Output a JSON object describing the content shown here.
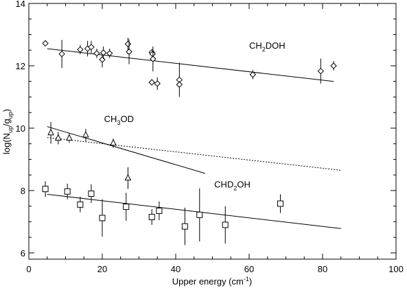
{
  "chart_data": {
    "type": "scatter",
    "title": "",
    "xlabel": "Upper energy (cm",
    "xlabel_sup": "-1",
    "xlabel_end": ")",
    "ylabel": "log(N",
    "ylabel_sub1": "up",
    "ylabel_mid": "/g",
    "ylabel_sub2": "up",
    "ylabel_end": ")",
    "xlim": [
      0,
      100
    ],
    "ylim": [
      5.8,
      14
    ],
    "xticks": [
      0,
      20,
      40,
      60,
      80,
      100
    ],
    "yticks": [
      6,
      8,
      10,
      12,
      14
    ],
    "grid": false,
    "series": [
      {
        "name": "CH2DOH",
        "label_parts": [
          "CH",
          "2",
          "DOH"
        ],
        "marker": "diamond",
        "points": [
          {
            "x": 4.5,
            "y": 12.72,
            "yerr": 0.1
          },
          {
            "x": 9.0,
            "y": 12.38,
            "yerr": 0.45
          },
          {
            "x": 14.0,
            "y": 12.52,
            "yerr": 0.15
          },
          {
            "x": 16.0,
            "y": 12.55,
            "yerr": 0.25
          },
          {
            "x": 17.0,
            "y": 12.6,
            "yerr": 0.2
          },
          {
            "x": 18.5,
            "y": 12.4,
            "yerr": 0.15
          },
          {
            "x": 20.0,
            "y": 12.2,
            "yerr": 0.25
          },
          {
            "x": 20.3,
            "y": 12.42,
            "yerr": 0.2
          },
          {
            "x": 22.0,
            "y": 12.4,
            "yerr": 0.15
          },
          {
            "x": 27.0,
            "y": 12.7,
            "yerr": 0.2
          },
          {
            "x": 27.3,
            "y": 12.45,
            "yerr": 0.4
          },
          {
            "x": 33.5,
            "y": 12.43,
            "yerr": 0.1
          },
          {
            "x": 33.7,
            "y": 12.38,
            "yerr": 0.1
          },
          {
            "x": 33.8,
            "y": 12.22,
            "yerr": 0.4
          },
          {
            "x": 33.5,
            "y": 11.47,
            "yerr": 0.1
          },
          {
            "x": 35.0,
            "y": 11.43,
            "yerr": 0.2
          },
          {
            "x": 41.0,
            "y": 11.55,
            "yerr": 0.55
          },
          {
            "x": 41.0,
            "y": 11.4,
            "yerr": 0.1
          },
          {
            "x": 61.0,
            "y": 11.72,
            "yerr": 0.15
          },
          {
            "x": 79.5,
            "y": 11.83,
            "yerr": 0.4
          },
          {
            "x": 83.0,
            "y": 12.0,
            "yerr": 0.15
          }
        ],
        "fits": [
          {
            "x": [
              5,
              83
            ],
            "y": [
              12.55,
              11.5
            ],
            "dash": false
          }
        ]
      },
      {
        "name": "CH3OD",
        "label_parts": [
          "CH",
          "3",
          "OD"
        ],
        "marker": "triangle",
        "points": [
          {
            "x": 6.0,
            "y": 9.85,
            "yerr": 0.35
          },
          {
            "x": 8.0,
            "y": 9.68,
            "yerr": 0.2
          },
          {
            "x": 11.0,
            "y": 9.68,
            "yerr": 0.15
          },
          {
            "x": 15.5,
            "y": 9.78,
            "yerr": 0.2
          },
          {
            "x": 23.0,
            "y": 9.52,
            "yerr": 0.15
          },
          {
            "x": 27.0,
            "y": 8.4,
            "yerr": 0.35
          }
        ],
        "fits": [
          {
            "x": [
              5,
              48
            ],
            "y": [
              10.05,
              8.55
            ],
            "dash": false
          },
          {
            "x": [
              5,
              85
            ],
            "y": [
              9.7,
              8.65
            ],
            "dash": true
          }
        ]
      },
      {
        "name": "CHD2OH",
        "label_parts": [
          "CHD",
          "2",
          "OH"
        ],
        "marker": "square",
        "points": [
          {
            "x": 4.5,
            "y": 8.05,
            "yerr": 0.25
          },
          {
            "x": 10.5,
            "y": 7.97,
            "yerr": 0.25
          },
          {
            "x": 14.0,
            "y": 7.55,
            "yerr": 0.25
          },
          {
            "x": 17.0,
            "y": 7.9,
            "yerr": 0.3
          },
          {
            "x": 20.0,
            "y": 7.12,
            "yerr": 0.6
          },
          {
            "x": 26.5,
            "y": 7.48,
            "yerr": 0.45
          },
          {
            "x": 33.5,
            "y": 7.15,
            "yerr": 0.25
          },
          {
            "x": 35.5,
            "y": 7.35,
            "yerr": 0.3
          },
          {
            "x": 42.5,
            "y": 6.85,
            "yerr": 0.6
          },
          {
            "x": 46.5,
            "y": 7.22,
            "yerr": 0.85
          },
          {
            "x": 53.5,
            "y": 6.9,
            "yerr": 0.6
          },
          {
            "x": 68.5,
            "y": 7.58,
            "yerr": 0.3
          }
        ],
        "fits": [
          {
            "x": [
              5,
              85
            ],
            "y": [
              7.88,
              6.78
            ],
            "dash": false
          }
        ]
      }
    ],
    "annotations": [
      {
        "series": 0,
        "x": 60,
        "y": 12.55,
        "anchor": "start"
      },
      {
        "series": 1,
        "x": 20.5,
        "y": 10.2,
        "anchor": "start"
      },
      {
        "series": 2,
        "x": 50.5,
        "y": 8.1,
        "anchor": "start"
      }
    ]
  }
}
